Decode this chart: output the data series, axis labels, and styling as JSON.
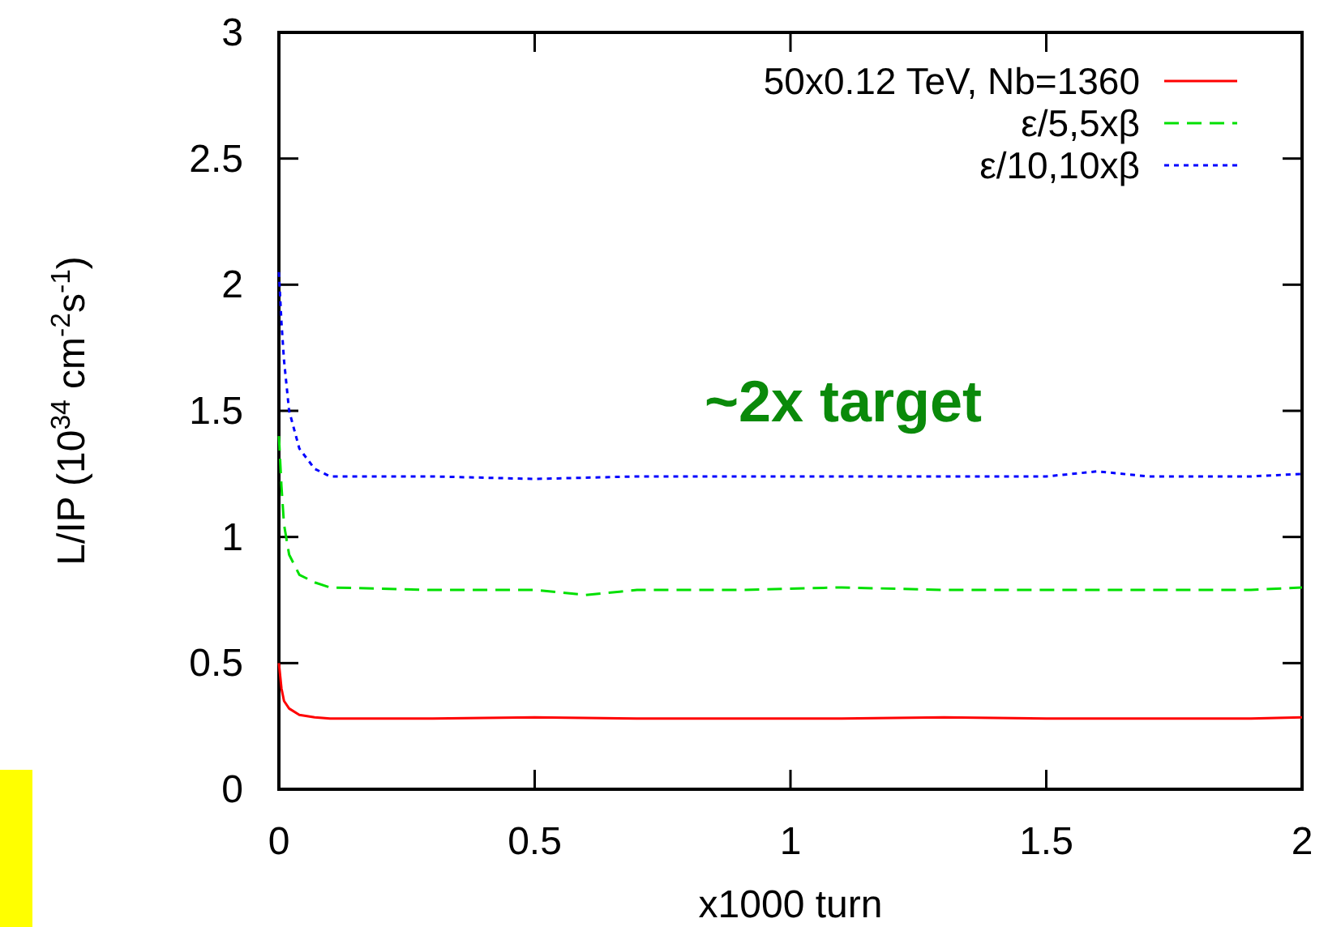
{
  "chart_data": {
    "type": "line",
    "xlabel": "x1000 turn",
    "ylabel": "L/IP (10$^{34}$ cm$^{-2}$s$^{-1}$)",
    "xlim": [
      0,
      2
    ],
    "xticks": [
      0,
      0.5,
      1,
      1.5,
      2
    ],
    "ylim": [
      0,
      3
    ],
    "yticks": [
      0,
      0.5,
      1,
      1.5,
      2,
      2.5,
      3
    ],
    "grid": false,
    "legend": "top right",
    "annotations": [
      "~2x target"
    ],
    "series": [
      {
        "name": "50x0.12 TeV, Nb=1360",
        "color": "#ff0000",
        "line_style": "solid",
        "x": [
          0,
          0.005,
          0.01,
          0.02,
          0.04,
          0.07,
          0.1,
          0.3,
          0.5,
          0.7,
          0.9,
          1.1,
          1.3,
          1.5,
          1.7,
          1.9,
          2
        ],
        "values": [
          0.5,
          0.4,
          0.35,
          0.32,
          0.295,
          0.285,
          0.28,
          0.28,
          0.285,
          0.28,
          0.28,
          0.28,
          0.285,
          0.28,
          0.28,
          0.28,
          0.285
        ]
      },
      {
        "name": "ε/5,5xβ",
        "color": "#00e000",
        "line_style": "dashed",
        "x": [
          0,
          0.005,
          0.01,
          0.02,
          0.04,
          0.07,
          0.1,
          0.3,
          0.5,
          0.6,
          0.7,
          0.9,
          1.1,
          1.3,
          1.5,
          1.7,
          1.9,
          2
        ],
        "values": [
          1.4,
          1.2,
          1.05,
          0.93,
          0.85,
          0.82,
          0.8,
          0.79,
          0.79,
          0.77,
          0.79,
          0.79,
          0.8,
          0.79,
          0.79,
          0.79,
          0.79,
          0.8
        ]
      },
      {
        "name": "ε/10,10xβ",
        "color": "#0000ff",
        "line_style": "dotted",
        "x": [
          0,
          0.005,
          0.01,
          0.02,
          0.04,
          0.07,
          0.1,
          0.3,
          0.5,
          0.7,
          0.9,
          1.1,
          1.3,
          1.5,
          1.6,
          1.7,
          1.9,
          2
        ],
        "values": [
          2.05,
          1.85,
          1.7,
          1.5,
          1.35,
          1.27,
          1.24,
          1.24,
          1.23,
          1.24,
          1.24,
          1.24,
          1.24,
          1.24,
          1.26,
          1.24,
          1.24,
          1.25
        ]
      }
    ]
  }
}
